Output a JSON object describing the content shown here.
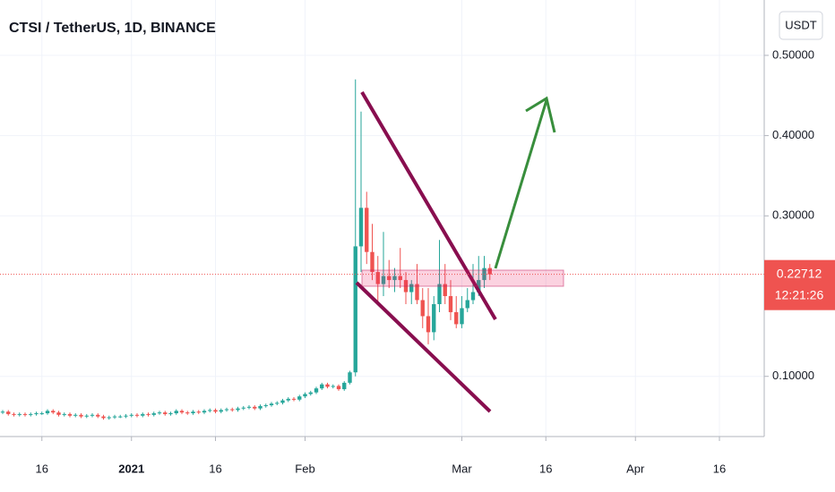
{
  "chart_data": {
    "type": "candlestick",
    "title": "CTSI / TetherUS, 1D, BINANCE",
    "currency": "USDT",
    "up_color": "#26a69a",
    "down_color": "#ef5350",
    "grid": true,
    "xlim": [
      -0.48,
      136
    ],
    "xticks": [
      {
        "value": 7,
        "label": "16"
      },
      {
        "value": 23,
        "label": "2021"
      },
      {
        "value": 38,
        "label": "16"
      },
      {
        "value": 54,
        "label": "Feb"
      },
      {
        "value": 82,
        "label": "Mar"
      },
      {
        "value": 97,
        "label": "16"
      },
      {
        "value": 113,
        "label": "Apr"
      },
      {
        "value": 128,
        "label": "16"
      }
    ],
    "ylim": [
      0.025,
      0.569
    ],
    "yticks": [
      {
        "value": 0.1,
        "label": "0.10000"
      },
      {
        "value": 0.3,
        "label": "0.30000"
      },
      {
        "value": 0.4,
        "label": "0.40000"
      },
      {
        "value": 0.5,
        "label": "0.50000"
      }
    ],
    "last_price": {
      "value": 0.22712,
      "label": "0.22712"
    },
    "countdown": "12:21:26",
    "open": [
      0.055,
      0.056,
      0.053,
      0.052,
      0.053,
      0.052,
      0.053,
      0.054,
      0.054,
      0.057,
      0.055,
      0.052,
      0.053,
      0.051,
      0.052,
      0.05,
      0.051,
      0.052,
      0.05,
      0.048,
      0.049,
      0.05,
      0.05,
      0.051,
      0.052,
      0.051,
      0.053,
      0.052,
      0.054,
      0.055,
      0.053,
      0.054,
      0.057,
      0.055,
      0.054,
      0.056,
      0.055,
      0.057,
      0.058,
      0.056,
      0.058,
      0.059,
      0.058,
      0.06,
      0.061,
      0.062,
      0.06,
      0.063,
      0.064,
      0.066,
      0.067,
      0.07,
      0.072,
      0.071,
      0.075,
      0.078,
      0.08,
      0.085,
      0.09,
      0.087,
      0.088,
      0.084,
      0.092,
      0.105,
      0.262,
      0.31,
      0.255,
      0.23,
      0.215,
      0.225,
      0.22,
      0.225,
      0.22,
      0.205,
      0.215,
      0.195,
      0.175,
      0.155,
      0.19,
      0.215,
      0.2,
      0.18,
      0.165,
      0.185,
      0.195,
      0.205,
      0.22,
      0.235
    ],
    "high": [
      0.058,
      0.058,
      0.055,
      0.055,
      0.055,
      0.055,
      0.056,
      0.056,
      0.059,
      0.059,
      0.057,
      0.055,
      0.055,
      0.054,
      0.054,
      0.053,
      0.054,
      0.054,
      0.052,
      0.051,
      0.052,
      0.052,
      0.053,
      0.054,
      0.054,
      0.055,
      0.055,
      0.056,
      0.057,
      0.057,
      0.056,
      0.059,
      0.059,
      0.057,
      0.058,
      0.058,
      0.059,
      0.06,
      0.06,
      0.06,
      0.061,
      0.061,
      0.062,
      0.063,
      0.064,
      0.064,
      0.065,
      0.066,
      0.068,
      0.069,
      0.072,
      0.074,
      0.074,
      0.077,
      0.08,
      0.082,
      0.087,
      0.092,
      0.092,
      0.09,
      0.09,
      0.094,
      0.107,
      0.47,
      0.43,
      0.33,
      0.29,
      0.25,
      0.28,
      0.245,
      0.235,
      0.26,
      0.23,
      0.22,
      0.24,
      0.21,
      0.21,
      0.2,
      0.27,
      0.24,
      0.22,
      0.2,
      0.2,
      0.21,
      0.24,
      0.25,
      0.25,
      0.24
    ],
    "low": [
      0.053,
      0.051,
      0.05,
      0.05,
      0.05,
      0.05,
      0.051,
      0.052,
      0.052,
      0.053,
      0.05,
      0.05,
      0.049,
      0.049,
      0.048,
      0.048,
      0.049,
      0.048,
      0.046,
      0.046,
      0.047,
      0.048,
      0.048,
      0.049,
      0.049,
      0.049,
      0.05,
      0.05,
      0.052,
      0.051,
      0.051,
      0.052,
      0.053,
      0.052,
      0.052,
      0.053,
      0.053,
      0.055,
      0.054,
      0.054,
      0.056,
      0.056,
      0.056,
      0.058,
      0.059,
      0.058,
      0.058,
      0.061,
      0.062,
      0.064,
      0.065,
      0.068,
      0.069,
      0.069,
      0.073,
      0.076,
      0.078,
      0.083,
      0.085,
      0.085,
      0.082,
      0.082,
      0.09,
      0.1,
      0.23,
      0.24,
      0.22,
      0.19,
      0.2,
      0.21,
      0.205,
      0.21,
      0.19,
      0.19,
      0.19,
      0.16,
      0.14,
      0.145,
      0.18,
      0.19,
      0.17,
      0.16,
      0.16,
      0.18,
      0.19,
      0.2,
      0.21,
      0.22
    ],
    "close": [
      0.056,
      0.053,
      0.052,
      0.053,
      0.052,
      0.053,
      0.054,
      0.054,
      0.057,
      0.055,
      0.052,
      0.053,
      0.051,
      0.052,
      0.05,
      0.051,
      0.052,
      0.05,
      0.048,
      0.049,
      0.05,
      0.05,
      0.051,
      0.052,
      0.051,
      0.053,
      0.052,
      0.054,
      0.055,
      0.053,
      0.054,
      0.057,
      0.055,
      0.054,
      0.056,
      0.055,
      0.057,
      0.058,
      0.056,
      0.058,
      0.059,
      0.058,
      0.06,
      0.061,
      0.062,
      0.06,
      0.063,
      0.064,
      0.066,
      0.067,
      0.07,
      0.072,
      0.071,
      0.075,
      0.078,
      0.08,
      0.085,
      0.09,
      0.087,
      0.088,
      0.084,
      0.092,
      0.105,
      0.262,
      0.31,
      0.255,
      0.23,
      0.215,
      0.225,
      0.22,
      0.225,
      0.22,
      0.205,
      0.215,
      0.195,
      0.175,
      0.155,
      0.19,
      0.215,
      0.2,
      0.18,
      0.165,
      0.185,
      0.195,
      0.205,
      0.22,
      0.235,
      0.22712
    ]
  }
}
